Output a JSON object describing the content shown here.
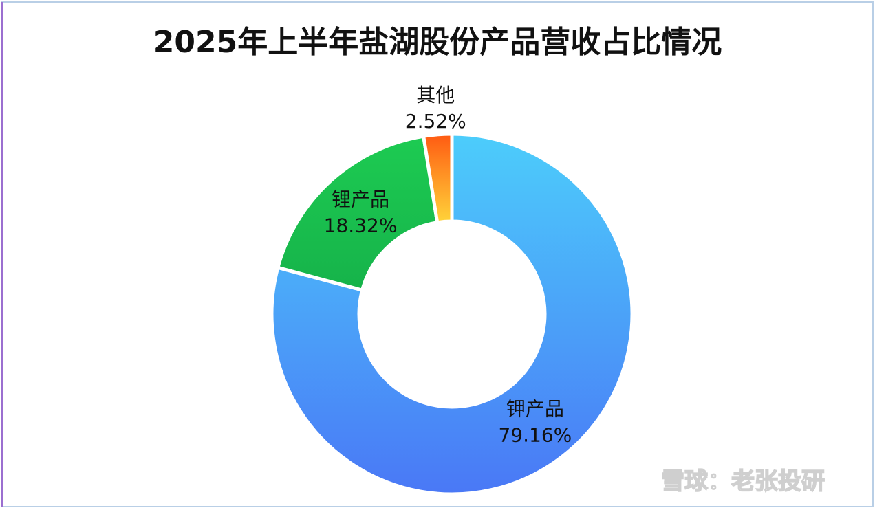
{
  "chart_data": {
    "type": "donut",
    "title": "2025年上半年盐湖股份产品营收占比情况",
    "categories": [
      "钾产品",
      "锂产品",
      "其他"
    ],
    "values": [
      79.16,
      18.32,
      2.52
    ],
    "value_labels": [
      "79.16%",
      "18.32%",
      "2.52%"
    ],
    "colors": [
      [
        "#4ccdfb",
        "#4a78f6"
      ],
      [
        "#1dcb52",
        "#16b34a"
      ],
      [
        "#ff5a12",
        "#ffd43a"
      ]
    ],
    "watermark": "雪球：老张投研"
  }
}
